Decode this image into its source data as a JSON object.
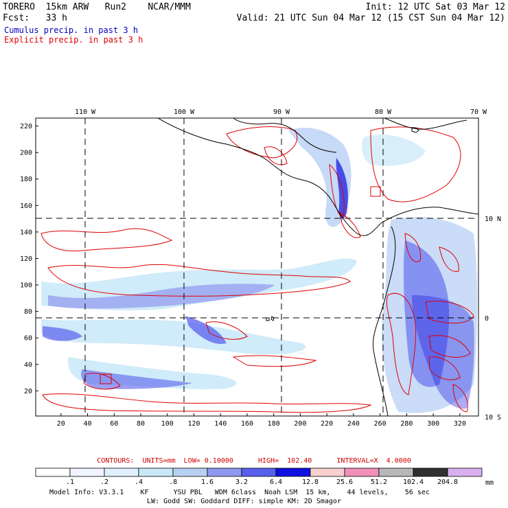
{
  "header": {
    "title_left": "TORERO  15km ARW   Run2    NCAR/MMM",
    "init": "Init: 12 UTC Sat 03 Mar 12",
    "fcst": "Fcst:   33 h",
    "valid": "Valid: 21 UTC Sun 04 Mar 12 (15 CST Sun 04 Mar 12)",
    "cumulus": "Cumulus precip. in past 3 h",
    "explicit": "Explicit precip. in past 3 h",
    "cumulus_color": "#0000c0",
    "explicit_color": "#e00000"
  },
  "map": {
    "lon_labels": [
      "110 W",
      "100 W",
      "90 W",
      "80 W",
      "70 W"
    ],
    "lat_labels": [
      "10 N",
      "0",
      "10 S"
    ],
    "x_ticks": [
      "20",
      "40",
      "60",
      "80",
      "100",
      "120",
      "140",
      "160",
      "180",
      "200",
      "220",
      "240",
      "260",
      "280",
      "300",
      "320"
    ],
    "y_ticks": [
      "20",
      "40",
      "60",
      "80",
      "100",
      "120",
      "140",
      "160",
      "180",
      "200",
      "220"
    ],
    "x_range": [
      1,
      334
    ],
    "y_range": [
      1,
      226
    ],
    "lon_lines_x": [
      40,
      114,
      182,
      260
    ],
    "lat_lines_y": [
      150,
      77
    ]
  },
  "contours": "CONTOURS:  UNITS=mm  LOW= 0.10000      HIGH=  102.40      INTERVAL=X  4.0000",
  "legend": {
    "labels": [
      ".1",
      ".2",
      ".4",
      ".8",
      "1.6",
      "3.2",
      "6.4",
      "12.8",
      "25.6",
      "51.2",
      "102.4",
      "204.8"
    ],
    "unit": "mm",
    "colors": [
      "#ffffff",
      "#f0f4ff",
      "#e0f0ff",
      "#c8e8f8",
      "#b8d0f4",
      "#9098f0",
      "#5860ec",
      "#1010e0",
      "#f8d0d0",
      "#f090b8",
      "#b8b8b8",
      "#303030",
      "#d8b0f0"
    ]
  },
  "model_info": {
    "line1": "Model Info: V3.3.1    KF      YSU PBL   WDM 6class  Noah LSM  15 km,    44 levels,    56 sec",
    "line2": "LW: Godd SW: Goddard DIFF: simple KM: 2D Smagor"
  }
}
